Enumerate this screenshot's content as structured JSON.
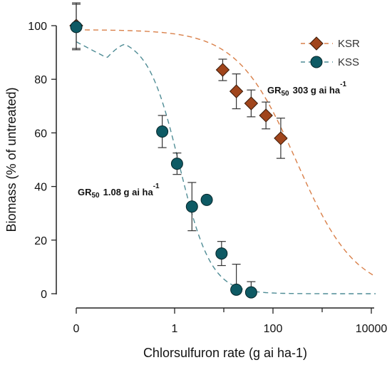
{
  "chart_data": {
    "type": "scatter",
    "xlabel": "Chlorsulfuron rate (g ai ha-1)",
    "ylabel": "Biomass (% of untreated)",
    "x_scale": "log",
    "x_ticks": [
      "0",
      "1",
      "100",
      "10000"
    ],
    "y_ticks": [
      "0",
      "20",
      "40",
      "60",
      "80",
      "100"
    ],
    "ylim": [
      0,
      100
    ],
    "grid": false,
    "legend_position": "top-right",
    "series": [
      {
        "name": "KSR",
        "color": "#a0451c",
        "marker": "diamond",
        "fit_line": "dashed",
        "fit_color": "#d9804a",
        "points": [
          {
            "x": 0,
            "y": 100,
            "err": 8.5
          },
          {
            "x": 9.5,
            "y": 83.5,
            "err": 4
          },
          {
            "x": 18,
            "y": 75.5,
            "err": 6.5
          },
          {
            "x": 36,
            "y": 71,
            "err": 5
          },
          {
            "x": 72,
            "y": 66.5,
            "err": 5
          },
          {
            "x": 144,
            "y": 58,
            "err": 7.5
          }
        ],
        "gr50": {
          "main": "GR",
          "sub": "50",
          "text": "303 g ai ha",
          "sup": "-1"
        }
      },
      {
        "name": "KSS",
        "color": "#0e5a64",
        "marker": "circle",
        "fit_line": "dashed",
        "fit_color": "#4f8c95",
        "points": [
          {
            "x": 0,
            "y": 99.5,
            "err": 8.5
          },
          {
            "x": 0.56,
            "y": 60.5,
            "err": 6
          },
          {
            "x": 1.12,
            "y": 48.5,
            "err": 4
          },
          {
            "x": 2.25,
            "y": 32.5,
            "err": 9
          },
          {
            "x": 4.5,
            "y": 35,
            "err": 0
          },
          {
            "x": 9,
            "y": 15,
            "err": 4.5
          },
          {
            "x": 18,
            "y": 1.5,
            "err": 9.5
          },
          {
            "x": 36,
            "y": 0.5,
            "err": 4
          }
        ],
        "gr50": {
          "main": "GR",
          "sub": "50",
          "text": "1.08 g ai ha",
          "sup": "-1"
        }
      }
    ]
  }
}
